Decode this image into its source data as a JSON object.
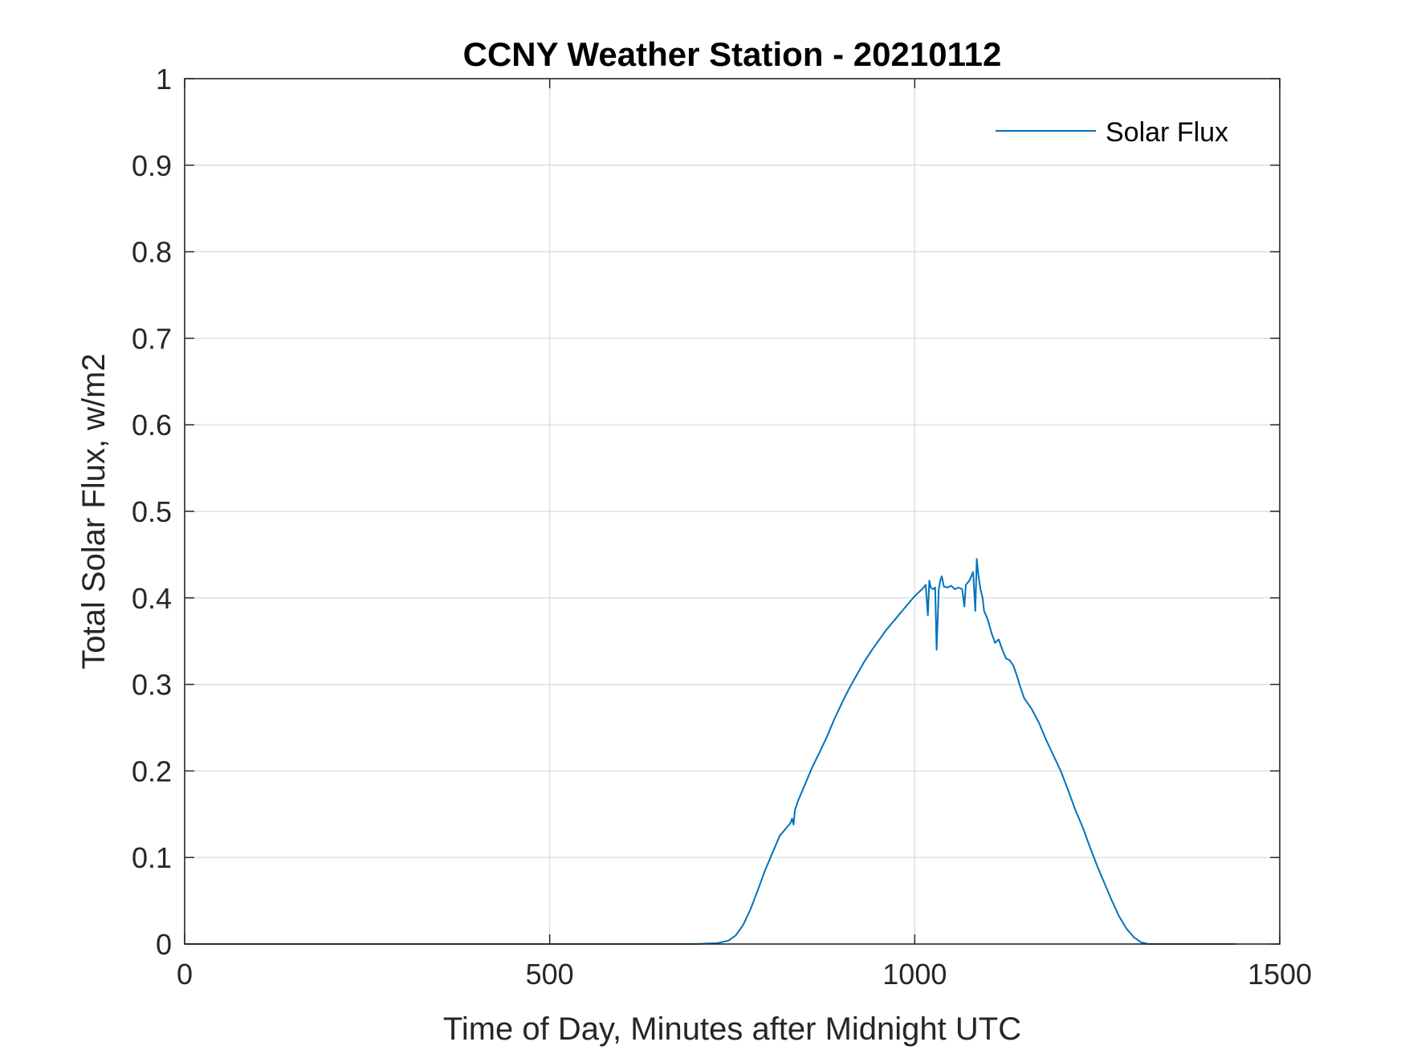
{
  "chart_data": {
    "type": "line",
    "title": "CCNY Weather Station - 20210112",
    "xlabel": "Time of Day, Minutes after Midnight UTC",
    "ylabel": "Total Solar Flux, w/m2",
    "xlim": [
      0,
      1500
    ],
    "ylim": [
      0,
      1
    ],
    "xticks": [
      0,
      500,
      1000,
      1500
    ],
    "xtick_labels": [
      "0",
      "500",
      "1000",
      "1500"
    ],
    "yticks": [
      0,
      0.1,
      0.2,
      0.3,
      0.4,
      0.5,
      0.6,
      0.7,
      0.8,
      0.9,
      1
    ],
    "ytick_labels": [
      "0",
      "0.1",
      "0.2",
      "0.3",
      "0.4",
      "0.5",
      "0.6",
      "0.7",
      "0.8",
      "0.9",
      "1"
    ],
    "grid": true,
    "legend_position": "top-right",
    "series": [
      {
        "name": "Solar Flux",
        "color": "#0072bd",
        "x": [
          0,
          100,
          200,
          300,
          400,
          500,
          600,
          700,
          730,
          745,
          755,
          765,
          775,
          785,
          795,
          805,
          815,
          825,
          830,
          832,
          834,
          836,
          840,
          850,
          860,
          870,
          880,
          890,
          900,
          910,
          920,
          930,
          940,
          950,
          960,
          970,
          980,
          990,
          1000,
          1010,
          1015,
          1018,
          1020,
          1022,
          1025,
          1028,
          1030,
          1033,
          1035,
          1037,
          1040,
          1045,
          1050,
          1055,
          1060,
          1065,
          1068,
          1070,
          1075,
          1080,
          1083,
          1085,
          1087,
          1090,
          1093,
          1095,
          1100,
          1105,
          1110,
          1115,
          1120,
          1125,
          1130,
          1135,
          1140,
          1145,
          1150,
          1160,
          1170,
          1180,
          1190,
          1200,
          1210,
          1220,
          1230,
          1240,
          1250,
          1260,
          1270,
          1280,
          1290,
          1300,
          1310,
          1320,
          1330,
          1340,
          1360,
          1380,
          1400,
          1420,
          1440
        ],
        "values": [
          0,
          0,
          0,
          0,
          0,
          0,
          0,
          0,
          0.001,
          0.004,
          0.01,
          0.022,
          0.04,
          0.062,
          0.085,
          0.105,
          0.125,
          0.135,
          0.14,
          0.145,
          0.138,
          0.155,
          0.165,
          0.185,
          0.205,
          0.222,
          0.24,
          0.26,
          0.278,
          0.295,
          0.31,
          0.325,
          0.338,
          0.35,
          0.362,
          0.372,
          0.382,
          0.392,
          0.402,
          0.41,
          0.415,
          0.38,
          0.42,
          0.412,
          0.41,
          0.412,
          0.34,
          0.41,
          0.42,
          0.425,
          0.413,
          0.412,
          0.414,
          0.41,
          0.412,
          0.41,
          0.39,
          0.415,
          0.42,
          0.43,
          0.385,
          0.445,
          0.428,
          0.41,
          0.4,
          0.385,
          0.375,
          0.36,
          0.348,
          0.352,
          0.34,
          0.33,
          0.328,
          0.322,
          0.31,
          0.296,
          0.284,
          0.272,
          0.256,
          0.236,
          0.218,
          0.2,
          0.178,
          0.155,
          0.135,
          0.112,
          0.09,
          0.07,
          0.05,
          0.032,
          0.018,
          0.008,
          0.002,
          0,
          0,
          0,
          0,
          0,
          0,
          0,
          0
        ]
      }
    ]
  }
}
